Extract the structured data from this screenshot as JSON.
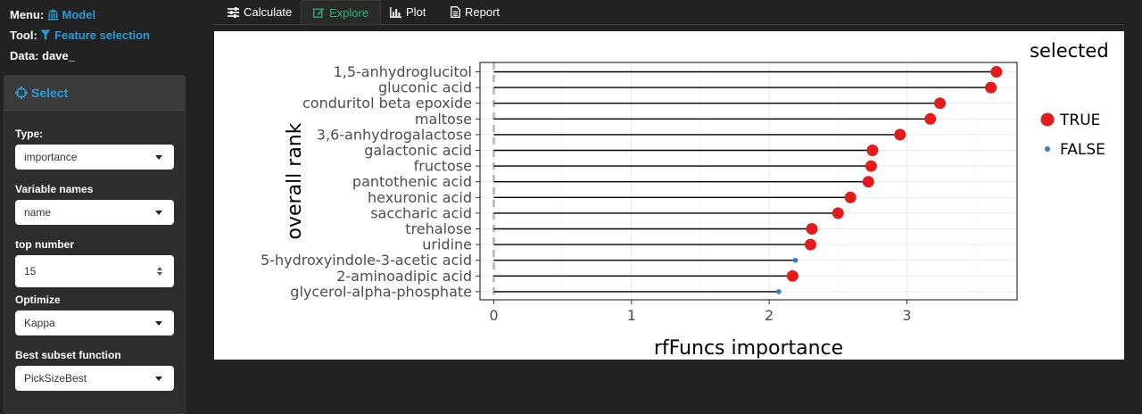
{
  "sidebar": {
    "menu_label": "Menu:",
    "menu_value": "Model",
    "tool_label": "Tool:",
    "tool_value": "Feature selection",
    "data_label": "Data:",
    "data_value": "dave_",
    "panel_title": "Select",
    "fields": {
      "type_label": "Type:",
      "type_value": "importance",
      "varnames_label": "Variable names",
      "varnames_value": "name",
      "topnum_label": "top number",
      "topnum_value": "15",
      "optimize_label": "Optimize",
      "optimize_value": "Kappa",
      "subset_label": "Best subset function",
      "subset_value": "PickSizeBest"
    }
  },
  "tabs": [
    "Calculate",
    "Explore",
    "Plot",
    "Report"
  ],
  "active_tab": "Explore",
  "colors": {
    "accent_blue": "#2c9ad6",
    "accent_green": "#2ab27b",
    "true_point": "#e41a1c",
    "false_point": "#377eb8"
  },
  "chart_data": {
    "type": "lollipop",
    "xlabel": "rfFuncs importance",
    "ylabel": "overall rank",
    "legend_title": "selected",
    "legend_entries": [
      "TRUE",
      "FALSE"
    ],
    "legend_position": "right",
    "xlim": [
      -0.1,
      3.8
    ],
    "x_ticks": [
      0,
      1,
      2,
      3
    ],
    "grid": true,
    "points": [
      {
        "label": "1,5-anhydroglucitol",
        "value": 3.65,
        "selected": "TRUE"
      },
      {
        "label": "gluconic acid",
        "value": 3.61,
        "selected": "TRUE"
      },
      {
        "label": "conduritol beta epoxide",
        "value": 3.24,
        "selected": "TRUE"
      },
      {
        "label": "maltose",
        "value": 3.17,
        "selected": "TRUE"
      },
      {
        "label": "3,6-anhydrogalactose",
        "value": 2.95,
        "selected": "TRUE"
      },
      {
        "label": "galactonic acid",
        "value": 2.75,
        "selected": "TRUE"
      },
      {
        "label": "fructose",
        "value": 2.74,
        "selected": "TRUE"
      },
      {
        "label": "pantothenic acid",
        "value": 2.72,
        "selected": "TRUE"
      },
      {
        "label": "hexuronic acid",
        "value": 2.59,
        "selected": "TRUE"
      },
      {
        "label": "saccharic acid",
        "value": 2.5,
        "selected": "TRUE"
      },
      {
        "label": "trehalose",
        "value": 2.31,
        "selected": "TRUE"
      },
      {
        "label": "uridine",
        "value": 2.3,
        "selected": "TRUE"
      },
      {
        "label": "5-hydroxyindole-3-acetic acid",
        "value": 2.19,
        "selected": "FALSE"
      },
      {
        "label": "2-aminoadipic acid",
        "value": 2.17,
        "selected": "TRUE"
      },
      {
        "label": "glycerol-alpha-phosphate",
        "value": 2.07,
        "selected": "FALSE"
      }
    ]
  }
}
